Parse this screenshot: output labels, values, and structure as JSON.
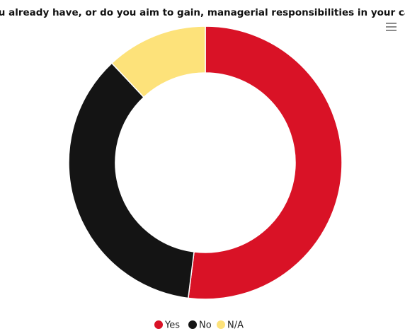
{
  "chart_data": {
    "type": "donut",
    "title": "Do you already have, or do you aim to gain, managerial responsibilities in your career?",
    "categories": [
      "Yes",
      "No",
      "N/A"
    ],
    "values": [
      52,
      36,
      12
    ],
    "colors": [
      "#d91226",
      "#141414",
      "#fde27a"
    ],
    "legend": "bottom"
  }
}
